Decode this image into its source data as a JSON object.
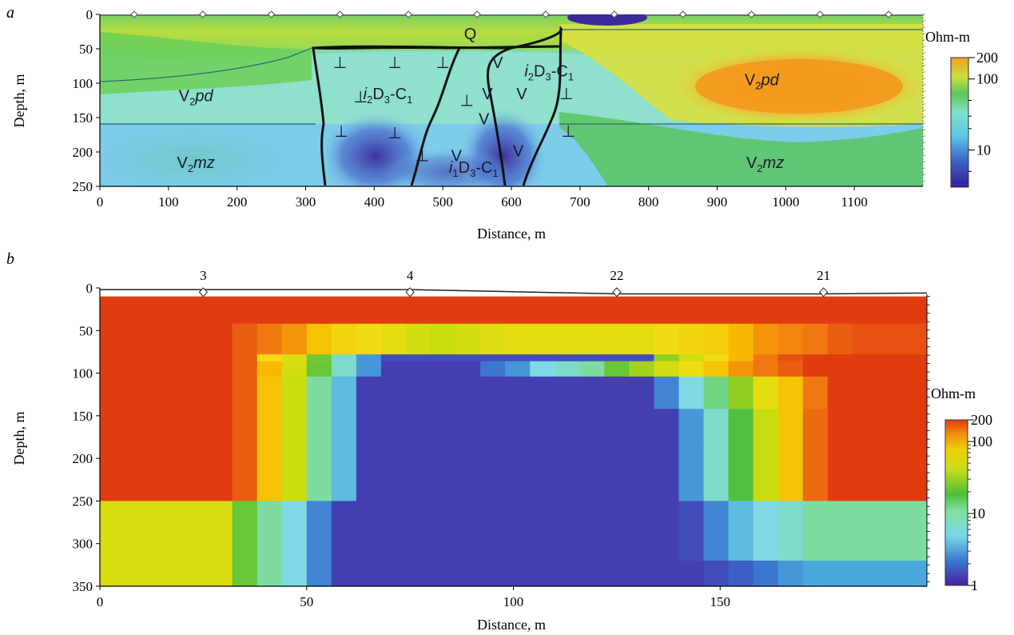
{
  "chart_data": [
    {
      "panel": "a",
      "type": "heatmap",
      "xlabel": "Distance, m",
      "ylabel": "Depth, m",
      "xlim": [
        0,
        1200
      ],
      "ylim": [
        250,
        0
      ],
      "x_ticks": [
        "0",
        "100",
        "200",
        "300",
        "400",
        "500",
        "600",
        "700",
        "800",
        "900",
        "1000",
        "1100"
      ],
      "y_ticks": [
        "0",
        "50",
        "100",
        "150",
        "200",
        "250"
      ],
      "x_tick_values": [
        0,
        100,
        200,
        300,
        400,
        500,
        600,
        700,
        800,
        900,
        1000,
        1100
      ],
      "y_tick_values": [
        0,
        50,
        100,
        150,
        200,
        250
      ],
      "electrode_positions": [
        50,
        150,
        250,
        350,
        450,
        550,
        650,
        750,
        850,
        950,
        1050,
        1150
      ],
      "colorbar": {
        "unit": "Ohm-m",
        "scale": "log",
        "range": [
          3,
          200
        ],
        "labels": [
          "200",
          "100",
          "10"
        ],
        "label_values": [
          200,
          100,
          10
        ]
      },
      "layers": [
        {
          "label": "Q",
          "color": "#a6d83a",
          "depth_range": [
            0,
            50
          ]
        },
        {
          "label": "V2pd",
          "color": "#8ee0c8",
          "depth_range": [
            50,
            160
          ]
        },
        {
          "label": "V2mz",
          "color": "#7ccbe4",
          "depth_range": [
            160,
            250
          ]
        }
      ],
      "annotations": [
        {
          "text": "Q",
          "x": 540,
          "y": 28
        },
        {
          "text_parts": [
            "V",
            "2",
            "pd"
          ],
          "x": 140,
          "y": 118
        },
        {
          "text_parts": [
            "V",
            "2",
            "pd"
          ],
          "x": 965,
          "y": 95
        },
        {
          "text_parts": [
            "V",
            "2",
            "mz"
          ],
          "x": 140,
          "y": 215
        },
        {
          "text_parts": [
            "V",
            "2",
            "mz"
          ],
          "x": 970,
          "y": 215
        },
        {
          "text_parts": [
            "i",
            "2",
            "D",
            "3",
            "-C",
            "1"
          ],
          "x": 420,
          "y": 115
        },
        {
          "text_parts": [
            "i",
            "2",
            "D",
            "3",
            "-C",
            "1"
          ],
          "x": 655,
          "y": 82
        },
        {
          "text_parts": [
            "i",
            "1",
            "D",
            "3",
            "-C",
            "1"
          ],
          "x": 545,
          "y": 222
        }
      ],
      "symbols": {
        "dyke_perp": "⊥",
        "volcanic_v": "V"
      }
    },
    {
      "panel": "b",
      "type": "heatmap",
      "xlabel": "Distance, m",
      "ylabel": "Depth, m",
      "xlim": [
        0,
        200
      ],
      "ylim": [
        350,
        0
      ],
      "x_ticks": [
        "0",
        "50",
        "100",
        "150"
      ],
      "y_ticks": [
        "0",
        "50",
        "100",
        "150",
        "200",
        "250",
        "300",
        "350"
      ],
      "x_tick_values": [
        0,
        50,
        100,
        150
      ],
      "y_tick_values": [
        0,
        50,
        100,
        150,
        200,
        250,
        300,
        350
      ],
      "stations": [
        {
          "label": "3",
          "x": 25
        },
        {
          "label": "4",
          "x": 75
        },
        {
          "label": "22",
          "x": 125
        },
        {
          "label": "21",
          "x": 175
        }
      ],
      "colorbar": {
        "unit": "Ohm-m",
        "scale": "log",
        "range": [
          1,
          200
        ],
        "labels": [
          "200",
          "100",
          "10",
          "1"
        ],
        "label_values": [
          200,
          100,
          10,
          1
        ]
      },
      "rows": [
        {
          "top": 10,
          "bottom": 42,
          "cells": [
            [
              0,
              200,
              160
            ]
          ]
        },
        {
          "top": 42,
          "bottom": 78,
          "cells": [
            [
              0,
              32,
              160
            ],
            [
              32,
              38,
              130
            ],
            [
              38,
              44,
              110
            ],
            [
              44,
              50,
              90
            ],
            [
              50,
              56,
              60
            ],
            [
              56,
              62,
              45
            ],
            [
              62,
              68,
              40
            ],
            [
              68,
              74,
              35
            ],
            [
              74,
              80,
              28
            ],
            [
              80,
              86,
              25
            ],
            [
              86,
              92,
              28
            ],
            [
              92,
              98,
              32
            ],
            [
              98,
              104,
              35
            ],
            [
              104,
              110,
              35
            ],
            [
              110,
              116,
              35
            ],
            [
              116,
              122,
              35
            ],
            [
              122,
              128,
              35
            ],
            [
              128,
              134,
              35
            ],
            [
              134,
              140,
              40
            ],
            [
              140,
              146,
              45
            ],
            [
              146,
              152,
              50
            ],
            [
              152,
              158,
              70
            ],
            [
              158,
              164,
              90
            ],
            [
              164,
              170,
              100
            ],
            [
              170,
              176,
              110
            ],
            [
              176,
              182,
              130
            ],
            [
              182,
              200,
              140
            ]
          ]
        },
        {
          "top": 78,
          "bottom": 86,
          "cells": [
            [
              0,
              32,
              160
            ],
            [
              32,
              38,
              130
            ],
            [
              38,
              44,
              40
            ],
            [
              44,
              50,
              30
            ],
            [
              50,
              56,
              15
            ],
            [
              56,
              62,
              6
            ],
            [
              62,
              68,
              3
            ],
            [
              68,
              74,
              1.5
            ],
            [
              74,
              80,
              1.5
            ],
            [
              80,
              92,
              1.5
            ],
            [
              92,
              110,
              1.5
            ],
            [
              110,
              128,
              1.5
            ],
            [
              128,
              134,
              1.5
            ],
            [
              134,
              140,
              18
            ],
            [
              140,
              146,
              28
            ],
            [
              146,
              152,
              40
            ],
            [
              152,
              158,
              70
            ],
            [
              158,
              164,
              110
            ],
            [
              164,
              170,
              140
            ],
            [
              170,
              200,
              160
            ]
          ]
        },
        {
          "top": 86,
          "bottom": 104,
          "cells": [
            [
              0,
              32,
              160
            ],
            [
              32,
              38,
              130
            ],
            [
              38,
              44,
              70
            ],
            [
              44,
              50,
              28
            ],
            [
              50,
              56,
              14
            ],
            [
              56,
              62,
              6
            ],
            [
              62,
              68,
              3
            ],
            [
              68,
              92,
              1.3
            ],
            [
              92,
              98,
              2.2
            ],
            [
              98,
              104,
              3
            ],
            [
              104,
              110,
              5
            ],
            [
              110,
              116,
              6
            ],
            [
              116,
              122,
              8
            ],
            [
              122,
              128,
              14
            ],
            [
              128,
              134,
              20
            ],
            [
              134,
              140,
              28
            ],
            [
              140,
              146,
              40
            ],
            [
              146,
              152,
              60
            ],
            [
              152,
              158,
              90
            ],
            [
              158,
              164,
              110
            ],
            [
              164,
              170,
              130
            ],
            [
              170,
              200,
              160
            ]
          ]
        },
        {
          "top": 104,
          "bottom": 142,
          "cells": [
            [
              0,
              32,
              160
            ],
            [
              32,
              38,
              130
            ],
            [
              38,
              44,
              60
            ],
            [
              44,
              50,
              25
            ],
            [
              50,
              56,
              8
            ],
            [
              56,
              62,
              4
            ],
            [
              62,
              134,
              1.3
            ],
            [
              134,
              140,
              2.5
            ],
            [
              140,
              146,
              5
            ],
            [
              146,
              152,
              9
            ],
            [
              152,
              158,
              18
            ],
            [
              158,
              164,
              35
            ],
            [
              164,
              170,
              60
            ],
            [
              170,
              176,
              110
            ],
            [
              176,
              200,
              160
            ]
          ]
        },
        {
          "top": 142,
          "bottom": 185,
          "cells": [
            [
              0,
              32,
              160
            ],
            [
              32,
              38,
              130
            ],
            [
              38,
              44,
              60
            ],
            [
              44,
              50,
              25
            ],
            [
              50,
              56,
              8
            ],
            [
              56,
              62,
              4
            ],
            [
              62,
              140,
              1.3
            ],
            [
              140,
              146,
              3
            ],
            [
              146,
              152,
              6
            ],
            [
              152,
              158,
              12
            ],
            [
              158,
              164,
              25
            ],
            [
              164,
              170,
              60
            ],
            [
              170,
              176,
              120
            ],
            [
              176,
              200,
              160
            ]
          ]
        },
        {
          "top": 185,
          "bottom": 250,
          "cells": [
            [
              0,
              32,
              160
            ],
            [
              32,
              38,
              130
            ],
            [
              38,
              44,
              60
            ],
            [
              44,
              50,
              25
            ],
            [
              50,
              56,
              8
            ],
            [
              56,
              62,
              4
            ],
            [
              62,
              140,
              1.3
            ],
            [
              140,
              146,
              3
            ],
            [
              146,
              152,
              6
            ],
            [
              152,
              158,
              12
            ],
            [
              158,
              164,
              25
            ],
            [
              164,
              170,
              60
            ],
            [
              170,
              176,
              120
            ],
            [
              176,
              200,
              160
            ]
          ]
        },
        {
          "top": 250,
          "bottom": 320,
          "cells": [
            [
              0,
              32,
              30
            ],
            [
              32,
              38,
              14
            ],
            [
              38,
              44,
              8
            ],
            [
              44,
              50,
              5
            ],
            [
              50,
              56,
              2.5
            ],
            [
              56,
              140,
              1.3
            ],
            [
              140,
              146,
              1.5
            ],
            [
              146,
              152,
              2.5
            ],
            [
              152,
              158,
              4
            ],
            [
              158,
              164,
              5
            ],
            [
              164,
              170,
              6
            ],
            [
              170,
              176,
              8
            ],
            [
              176,
              200,
              8
            ]
          ]
        },
        {
          "top": 320,
          "bottom": 350,
          "cells": [
            [
              0,
              32,
              30
            ],
            [
              32,
              38,
              14
            ],
            [
              38,
              44,
              8
            ],
            [
              44,
              50,
              5
            ],
            [
              50,
              56,
              2.5
            ],
            [
              56,
              146,
              1.3
            ],
            [
              146,
              152,
              1.5
            ],
            [
              152,
              158,
              1.8
            ],
            [
              158,
              164,
              2.2
            ],
            [
              164,
              170,
              3
            ],
            [
              170,
              200,
              3.5
            ]
          ]
        }
      ]
    }
  ],
  "panel_labels": {
    "a": "a",
    "b": "b"
  }
}
